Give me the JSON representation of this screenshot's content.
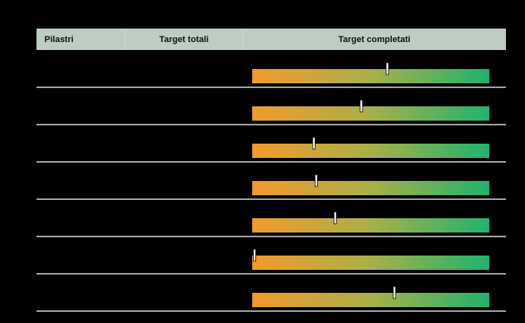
{
  "table": {
    "header": [
      "Pilastri",
      "Target totali",
      "Target completati"
    ],
    "xlim": [
      0,
      100
    ],
    "rows": [
      {
        "progress": 57
      },
      {
        "progress": 46
      },
      {
        "progress": 26
      },
      {
        "progress": 27
      },
      {
        "progress": 35
      },
      {
        "progress": 1
      },
      {
        "progress": 60
      }
    ]
  }
}
